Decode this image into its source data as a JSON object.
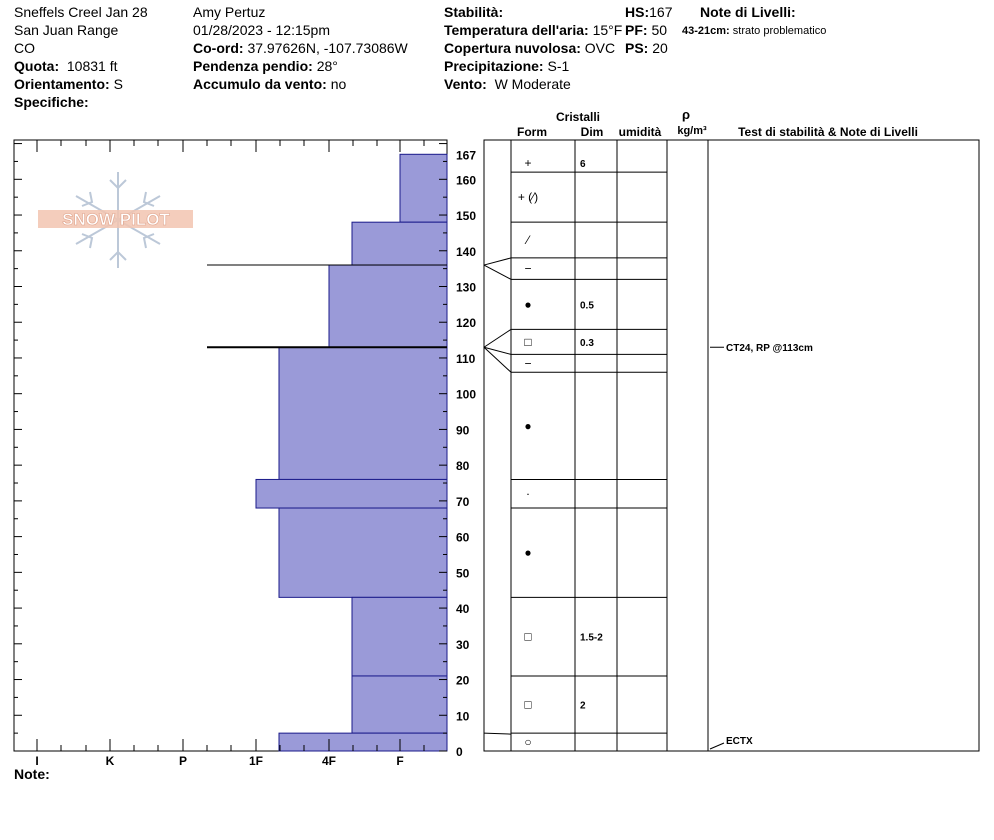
{
  "header": {
    "col1": [
      "Sneffels Creel Jan 28",
      "San Juan Range",
      "CO"
    ],
    "quota_label": "Quota:",
    "quota_value": "10831 ft",
    "orient_label": "Orientamento:",
    "orient_value": "S",
    "spec_label": "Specifiche:",
    "observer": "Amy  Pertuz",
    "datetime": "01/28/2023 - 12:15pm",
    "coord_label": "Co-ord:",
    "coord_value": "37.97626N, -107.73086W",
    "slope_label": "Pendenza pendio:",
    "slope_value": "28°",
    "wind_load_label": "Accumulo da vento:",
    "wind_load_value": "no",
    "stability_label": "Stabilità:",
    "air_temp_label": "Temperatura dell'aria:",
    "air_temp_value": "15°F",
    "cloud_label": "Copertura nuvolosa:",
    "cloud_value": "OVC",
    "precip_label": "Precipitazione:",
    "precip_value": "S-1",
    "wind_label": "Vento:",
    "wind_value": "W Moderate",
    "hs_label": "HS:",
    "hs_value": "167",
    "pf_label": "PF:",
    "pf_value": "50",
    "ps_label": "PS:",
    "ps_value": "20",
    "layer_notes_label": "Note di Livelli:",
    "layer_note_depth": "43-21cm:",
    "layer_note_text": "strato problematico",
    "notes_label": "Note:"
  },
  "logo_text": "SNOW PILOT",
  "columns": {
    "crystals": "Cristalli",
    "form": "Form",
    "dim": "Dim",
    "humidity": "umidità",
    "rho": "ρ",
    "density_unit": "kg/m³",
    "stability_notes": "Test di stabilità & Note di Livelli"
  },
  "chart_data": {
    "type": "bar",
    "orientation": "horizontal",
    "description_axis": "height_cm",
    "y_range": [
      0,
      167
    ],
    "y_ticks": [
      0,
      10,
      20,
      30,
      40,
      50,
      60,
      70,
      80,
      90,
      100,
      110,
      120,
      130,
      140,
      150,
      160,
      167
    ],
    "hardness_labels": [
      "I",
      "K",
      "P",
      "1F",
      "4F",
      "F"
    ],
    "layers": [
      {
        "top": 167,
        "bottom": 148,
        "hardness": "F"
      },
      {
        "top": 148,
        "bottom": 136,
        "hardness": "4F+"
      },
      {
        "top": 136,
        "bottom": 113,
        "hardness": "4F"
      },
      {
        "top": 113,
        "bottom": 76,
        "hardness": "1F-"
      },
      {
        "top": 76,
        "bottom": 68,
        "hardness": "1F"
      },
      {
        "top": 68,
        "bottom": 43,
        "hardness": "1F-"
      },
      {
        "top": 43,
        "bottom": 21,
        "hardness": "4F+"
      },
      {
        "top": 21,
        "bottom": 5,
        "hardness": "4F+"
      },
      {
        "top": 5,
        "bottom": 0,
        "hardness": "1F-"
      }
    ],
    "interfaces": [
      136,
      113
    ],
    "crystal_rows": [
      {
        "top": 167,
        "bottom": 162,
        "form": "+",
        "dim": "6"
      },
      {
        "top": 162,
        "bottom": 148,
        "form": "+ (⁄)",
        "dim": ""
      },
      {
        "top": 148,
        "bottom": 138,
        "form": "⁄",
        "dim": ""
      },
      {
        "top": 138,
        "bottom": 132,
        "form": "−",
        "dim": ""
      },
      {
        "top": 132,
        "bottom": 118,
        "form": "●",
        "dim": "0.5"
      },
      {
        "top": 118,
        "bottom": 111,
        "form": "□",
        "dim": "0.3"
      },
      {
        "top": 111,
        "bottom": 106,
        "form": "−",
        "dim": ""
      },
      {
        "top": 106,
        "bottom": 76,
        "form": "●",
        "dim": ""
      },
      {
        "top": 76,
        "bottom": 68,
        "form": "·",
        "dim": ""
      },
      {
        "top": 68,
        "bottom": 43,
        "form": "●",
        "dim": ""
      },
      {
        "top": 43,
        "bottom": 21,
        "form": "□",
        "dim": "1.5-2"
      },
      {
        "top": 21,
        "bottom": 5,
        "form": "□",
        "dim": "2"
      },
      {
        "top": 5,
        "bottom": 0,
        "form": "○",
        "dim": ""
      }
    ],
    "tests": [
      {
        "height": 113,
        "label": "CT24, RP @113cm"
      },
      {
        "height": 0,
        "label": "ECTX"
      }
    ]
  }
}
